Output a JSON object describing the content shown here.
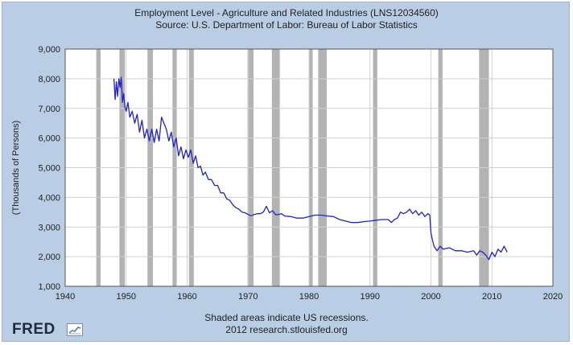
{
  "chart_data": {
    "type": "line",
    "title": "Employment Level - Agriculture and Related Industries (LNS12034560)",
    "subtitle": "Source: U.S. Department of Labor: Bureau of Labor Statistics",
    "xlabel": "",
    "ylabel": "(Thousands of Persons)",
    "xlim": [
      1940,
      2020
    ],
    "ylim": [
      1000,
      9000
    ],
    "x_ticks": [
      1940,
      1950,
      1960,
      1970,
      1980,
      1990,
      2000,
      2010,
      2020
    ],
    "y_ticks": [
      "1,000",
      "2,000",
      "3,000",
      "4,000",
      "5,000",
      "6,000",
      "7,000",
      "8,000",
      "9,000"
    ],
    "grid": true,
    "recessions": [
      [
        1945.1,
        1945.8
      ],
      [
        1948.9,
        1949.8
      ],
      [
        1953.5,
        1954.4
      ],
      [
        1957.6,
        1958.3
      ],
      [
        1960.3,
        1961.1
      ],
      [
        1969.9,
        1970.9
      ],
      [
        1973.9,
        1975.2
      ],
      [
        1980.0,
        1980.6
      ],
      [
        1981.5,
        1982.9
      ],
      [
        1990.5,
        1991.2
      ],
      [
        2001.2,
        2001.9
      ],
      [
        2007.9,
        2009.5
      ]
    ],
    "series": [
      {
        "color": "#2222cc",
        "x": [
          1948.0,
          1948.2,
          1948.4,
          1948.6,
          1948.8,
          1949.0,
          1949.2,
          1949.4,
          1949.6,
          1949.8,
          1950.0,
          1950.3,
          1950.6,
          1951.0,
          1951.4,
          1951.8,
          1952.2,
          1952.6,
          1953.0,
          1953.4,
          1953.8,
          1954.2,
          1954.6,
          1955.0,
          1955.4,
          1955.8,
          1956.2,
          1956.6,
          1957.0,
          1957.4,
          1957.8,
          1958.2,
          1958.6,
          1959.0,
          1959.4,
          1959.8,
          1960.2,
          1960.6,
          1961.0,
          1961.4,
          1961.8,
          1962.2,
          1962.6,
          1963.0,
          1963.5,
          1964.0,
          1964.5,
          1965.0,
          1965.5,
          1966.0,
          1966.5,
          1967.0,
          1967.5,
          1968.0,
          1968.5,
          1969.0,
          1969.5,
          1970.0,
          1970.5,
          1971.0,
          1971.5,
          1972.0,
          1972.5,
          1973.0,
          1973.5,
          1974.0,
          1974.5,
          1975.0,
          1975.5,
          1976.0,
          1977.0,
          1978.0,
          1979.0,
          1980.0,
          1981.0,
          1982.0,
          1983.0,
          1984.0,
          1985.0,
          1986.0,
          1987.0,
          1988.0,
          1989.0,
          1990.0,
          1991.0,
          1992.0,
          1993.0,
          1993.5,
          1994.0,
          1994.5,
          1995.0,
          1995.5,
          1996.0,
          1996.5,
          1997.0,
          1997.5,
          1998.0,
          1998.5,
          1999.0,
          1999.5,
          1999.8,
          2000.0,
          2000.2,
          2000.5,
          2001.0,
          2001.5,
          2002.0,
          2003.0,
          2004.0,
          2005.0,
          2006.0,
          2007.0,
          2007.5,
          2008.0,
          2008.5,
          2009.0,
          2009.5,
          2010.0,
          2010.5,
          2011.0,
          2011.5,
          2012.0,
          2012.5
        ],
        "values": [
          8000,
          7300,
          7900,
          7400,
          8000,
          7700,
          8050,
          7200,
          7500,
          7050,
          6900,
          7200,
          6700,
          6900,
          6500,
          6800,
          6200,
          6600,
          6000,
          6300,
          5900,
          6300,
          5850,
          6300,
          5900,
          6700,
          6500,
          6300,
          5900,
          6200,
          5700,
          6000,
          5400,
          5700,
          5300,
          5600,
          5350,
          5600,
          5150,
          5400,
          5000,
          5050,
          4750,
          4850,
          4600,
          4600,
          4400,
          4400,
          4150,
          4150,
          3950,
          3900,
          3750,
          3650,
          3600,
          3500,
          3480,
          3420,
          3380,
          3420,
          3450,
          3450,
          3500,
          3700,
          3480,
          3550,
          3420,
          3420,
          3450,
          3370,
          3350,
          3300,
          3300,
          3350,
          3400,
          3400,
          3370,
          3350,
          3250,
          3200,
          3150,
          3150,
          3180,
          3200,
          3230,
          3250,
          3250,
          3150,
          3250,
          3300,
          3500,
          3450,
          3500,
          3600,
          3450,
          3550,
          3400,
          3500,
          3350,
          3450,
          3400,
          2800,
          2600,
          2350,
          2200,
          2350,
          2250,
          2300,
          2200,
          2200,
          2150,
          2200,
          2050,
          2200,
          2150,
          2050,
          1900,
          2150,
          2000,
          2250,
          2150,
          2350,
          2150
        ]
      }
    ],
    "annotations": [
      "Shaded areas indicate US recessions.",
      "2012 research.stlouisfed.org"
    ]
  },
  "branding": {
    "logo": "FRED",
    "logo_mark": "fred-chart-icon"
  }
}
